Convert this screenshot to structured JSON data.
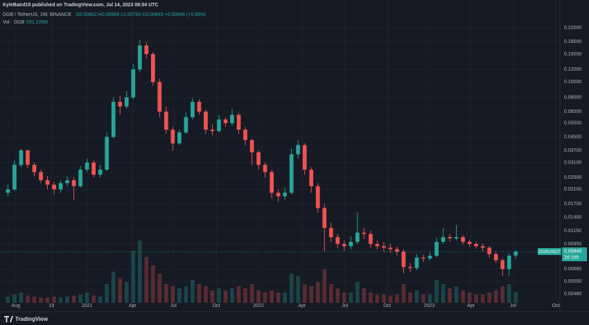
{
  "header": {
    "author_line": "KyleBaird15 published on TradingView.com, Jul 14, 2023 08:04 UTC",
    "symbol": "DGB / TetherUS, 1W, BINANCE",
    "ohlc": "O0.00802 H0.00869 L0.00764 C0.00849 +0.00048 (+5.99%)",
    "volume_label": "Vol · DGB",
    "volume_value": "531.105M"
  },
  "price_tag": {
    "symbol": "DGBUSDT",
    "price": "0.00849",
    "countdown": "2d 16h"
  },
  "footer": {
    "brand": "TradingView"
  },
  "chart_data": {
    "type": "candlestick",
    "log_scale": true,
    "grid": true,
    "up_color": "#26a69a",
    "down_color": "#ef5350",
    "xlim": [
      -1.2,
      83.7
    ],
    "xticks": [
      {
        "value": 1.2,
        "label": "Aug"
      },
      {
        "value": 6.6,
        "label": "19"
      },
      {
        "value": 12.0,
        "label": "2021"
      },
      {
        "value": 18.9,
        "label": "Apr"
      },
      {
        "value": 25.1,
        "label": "Jul"
      },
      {
        "value": 31.6,
        "label": "Oct"
      },
      {
        "value": 38.0,
        "label": "2022"
      },
      {
        "value": 44.6,
        "label": "Apr"
      },
      {
        "value": 51.1,
        "label": "Jul"
      },
      {
        "value": 57.5,
        "label": "Oct"
      },
      {
        "value": 63.9,
        "label": "2023"
      },
      {
        "value": 70.2,
        "label": "Apr"
      },
      {
        "value": 76.6,
        "label": "Jul"
      },
      {
        "value": 83.1,
        "label": "Oct"
      }
    ],
    "ylim": [
      0.00404,
      0.2976
    ],
    "yticks": [
      {
        "value": 0.22,
        "label": "0.22000"
      },
      {
        "value": 0.18,
        "label": "0.18000"
      },
      {
        "value": 0.15,
        "label": "0.15000"
      },
      {
        "value": 0.12,
        "label": "0.12000"
      },
      {
        "value": 0.1,
        "label": "0.10000"
      },
      {
        "value": 0.08,
        "label": "0.08000"
      },
      {
        "value": 0.065,
        "label": "0.06500"
      },
      {
        "value": 0.055,
        "label": "0.05500"
      },
      {
        "value": 0.045,
        "label": "0.04500"
      },
      {
        "value": 0.037,
        "label": "0.03700"
      },
      {
        "value": 0.031,
        "label": "0.03100"
      },
      {
        "value": 0.025,
        "label": "0.02500"
      },
      {
        "value": 0.021,
        "label": "0.02100"
      },
      {
        "value": 0.017,
        "label": "0.01700"
      },
      {
        "value": 0.014,
        "label": "0.01400"
      },
      {
        "value": 0.0115,
        "label": "0.01150"
      },
      {
        "value": 0.0095,
        "label": "0.00950"
      },
      {
        "value": 0.0066,
        "label": "0.00660"
      },
      {
        "value": 0.0055,
        "label": "0.00550"
      },
      {
        "value": 0.0046,
        "label": "0.00460"
      }
    ],
    "open": [
      0.02,
      0.021,
      0.03,
      0.037,
      0.03,
      0.027,
      0.024,
      0.0225,
      0.021,
      0.023,
      0.024,
      0.022,
      0.028,
      0.031,
      0.026,
      0.028,
      0.045,
      0.075,
      0.07,
      0.08,
      0.12,
      0.17,
      0.15,
      0.1,
      0.065,
      0.05,
      0.041,
      0.048,
      0.06,
      0.075,
      0.065,
      0.05,
      0.049,
      0.058,
      0.055,
      0.062,
      0.05,
      0.043,
      0.036,
      0.03,
      0.027,
      0.02,
      0.019,
      0.02,
      0.035,
      0.04,
      0.028,
      0.022,
      0.016,
      0.012,
      0.0105,
      0.0095,
      0.0092,
      0.0098,
      0.0112,
      0.011,
      0.0095,
      0.0092,
      0.009,
      0.0088,
      0.0085,
      0.0068,
      0.0067,
      0.0078,
      0.0077,
      0.008,
      0.0098,
      0.0105,
      0.0103,
      0.0105,
      0.0098,
      0.0095,
      0.0092,
      0.009,
      0.0082,
      0.0075,
      0.0066,
      0.00802
    ],
    "high": [
      0.0225,
      0.032,
      0.038,
      0.0375,
      0.031,
      0.028,
      0.0255,
      0.0235,
      0.024,
      0.0255,
      0.025,
      0.0295,
      0.033,
      0.032,
      0.03,
      0.048,
      0.08,
      0.082,
      0.088,
      0.13,
      0.185,
      0.18,
      0.155,
      0.105,
      0.07,
      0.052,
      0.05,
      0.064,
      0.079,
      0.078,
      0.067,
      0.054,
      0.062,
      0.06,
      0.068,
      0.064,
      0.052,
      0.044,
      0.037,
      0.031,
      0.028,
      0.021,
      0.0215,
      0.038,
      0.043,
      0.041,
      0.029,
      0.023,
      0.017,
      0.013,
      0.011,
      0.01,
      0.0106,
      0.015,
      0.012,
      0.0115,
      0.01,
      0.0098,
      0.0095,
      0.0092,
      0.0088,
      0.0072,
      0.0082,
      0.0081,
      0.0084,
      0.0104,
      0.012,
      0.011,
      0.0125,
      0.0108,
      0.0101,
      0.0098,
      0.0096,
      0.0092,
      0.0085,
      0.0077,
      0.0083,
      0.00869
    ],
    "low": [
      0.019,
      0.0205,
      0.029,
      0.0285,
      0.0255,
      0.023,
      0.021,
      0.0195,
      0.02,
      0.022,
      0.018,
      0.0215,
      0.027,
      0.025,
      0.025,
      0.0275,
      0.044,
      0.062,
      0.068,
      0.078,
      0.115,
      0.14,
      0.095,
      0.06,
      0.047,
      0.037,
      0.04,
      0.047,
      0.058,
      0.062,
      0.047,
      0.046,
      0.048,
      0.052,
      0.053,
      0.047,
      0.04,
      0.03,
      0.028,
      0.025,
      0.0185,
      0.0175,
      0.018,
      0.0195,
      0.033,
      0.026,
      0.02,
      0.015,
      0.0085,
      0.0098,
      0.009,
      0.0086,
      0.0088,
      0.0095,
      0.0102,
      0.009,
      0.0088,
      0.0085,
      0.0083,
      0.008,
      0.0062,
      0.0063,
      0.0065,
      0.0073,
      0.0075,
      0.0078,
      0.0095,
      0.0098,
      0.01,
      0.0094,
      0.0091,
      0.0089,
      0.0085,
      0.0078,
      0.0072,
      0.006,
      0.006,
      0.00764
    ],
    "close": [
      0.021,
      0.03,
      0.037,
      0.03,
      0.027,
      0.024,
      0.0225,
      0.021,
      0.023,
      0.024,
      0.022,
      0.028,
      0.031,
      0.026,
      0.028,
      0.045,
      0.075,
      0.07,
      0.08,
      0.12,
      0.17,
      0.15,
      0.1,
      0.065,
      0.05,
      0.041,
      0.048,
      0.06,
      0.075,
      0.065,
      0.05,
      0.049,
      0.058,
      0.055,
      0.062,
      0.05,
      0.043,
      0.036,
      0.03,
      0.027,
      0.02,
      0.019,
      0.02,
      0.035,
      0.04,
      0.028,
      0.022,
      0.016,
      0.012,
      0.0105,
      0.0095,
      0.0092,
      0.0098,
      0.0112,
      0.011,
      0.0095,
      0.0092,
      0.009,
      0.0088,
      0.0085,
      0.0068,
      0.0067,
      0.0078,
      0.0077,
      0.008,
      0.0098,
      0.0105,
      0.0103,
      0.0105,
      0.0098,
      0.0095,
      0.0092,
      0.009,
      0.0082,
      0.0075,
      0.0066,
      0.00802,
      0.00849
    ],
    "volume": [
      300,
      400,
      500,
      350,
      300,
      250,
      250,
      300,
      250,
      300,
      350,
      400,
      500,
      350,
      300,
      900,
      1500,
      1200,
      1000,
      2500,
      3000,
      2200,
      1800,
      1400,
      900,
      800,
      700,
      800,
      1100,
      900,
      800,
      600,
      700,
      600,
      700,
      800,
      700,
      900,
      600,
      500,
      600,
      500,
      500,
      1400,
      1300,
      900,
      800,
      1000,
      1600,
      900,
      700,
      500,
      500,
      1000,
      700,
      500,
      400,
      400,
      350,
      400,
      900,
      500,
      600,
      400,
      400,
      1100,
      900,
      700,
      800,
      600,
      500,
      400,
      400,
      500,
      600,
      800,
      900,
      531
    ]
  }
}
